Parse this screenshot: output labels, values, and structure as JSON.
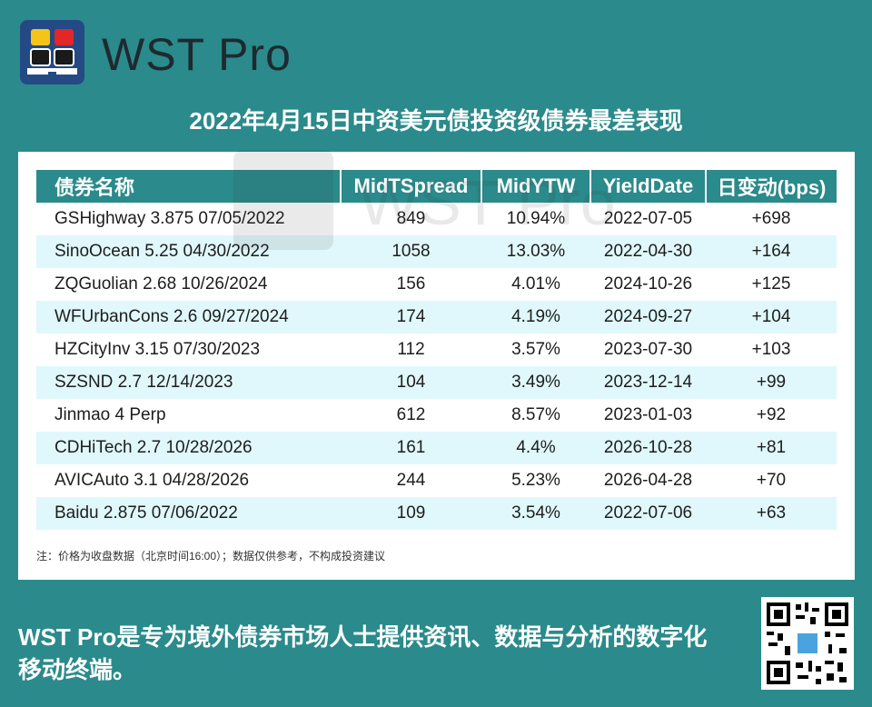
{
  "header": {
    "brand": "WST Pro",
    "logo_icon": "wst-pro-logo",
    "logo_bg": "#244a86"
  },
  "title": "2022年4月15日中资美元债投资级债券最差表现",
  "table": {
    "columns": [
      "债券名称",
      "MidTSpread",
      "MidYTW",
      "YieldDate",
      "日变动(bps)"
    ],
    "rows": [
      {
        "name": "GSHighway 3.875 07/05/2022",
        "spread": "849",
        "ytw": "10.94%",
        "date": "2022-07-05",
        "change": "+698"
      },
      {
        "name": "SinoOcean 5.25 04/30/2022",
        "spread": "1058",
        "ytw": "13.03%",
        "date": "2022-04-30",
        "change": "+164"
      },
      {
        "name": "ZQGuolian 2.68 10/26/2024",
        "spread": "156",
        "ytw": "4.01%",
        "date": "2024-10-26",
        "change": "+125"
      },
      {
        "name": "WFUrbanCons 2.6 09/27/2024",
        "spread": "174",
        "ytw": "4.19%",
        "date": "2024-09-27",
        "change": "+104"
      },
      {
        "name": "HZCityInv 3.15 07/30/2023",
        "spread": "112",
        "ytw": "3.57%",
        "date": "2023-07-30",
        "change": "+103"
      },
      {
        "name": "SZSND 2.7 12/14/2023",
        "spread": "104",
        "ytw": "3.49%",
        "date": "2023-12-14",
        "change": "+99"
      },
      {
        "name": "Jinmao 4 Perp",
        "spread": "612",
        "ytw": "8.57%",
        "date": "2023-01-03",
        "change": "+92"
      },
      {
        "name": "CDHiTech 2.7 10/28/2026",
        "spread": "161",
        "ytw": "4.4%",
        "date": "2026-10-28",
        "change": "+81"
      },
      {
        "name": "AVICAuto 3.1 04/28/2026",
        "spread": "244",
        "ytw": "5.23%",
        "date": "2026-04-28",
        "change": "+70"
      },
      {
        "name": "Baidu 2.875 07/06/2022",
        "spread": "109",
        "ytw": "3.54%",
        "date": "2022-07-06",
        "change": "+63"
      }
    ]
  },
  "note": "注：价格为收盘数据（北京时间16:00）；数据仅供参考，不构成投资建议",
  "watermark": "WST Pro",
  "tagline": "WST Pro是专为境外债券市场人士提供资讯、数据与分析的数字化移动终端。",
  "qr_icon": "qr-code",
  "colors": {
    "background": "#2b8a8b",
    "header_row": "#2b8a8b",
    "alt_row": "#e0f8fb"
  }
}
